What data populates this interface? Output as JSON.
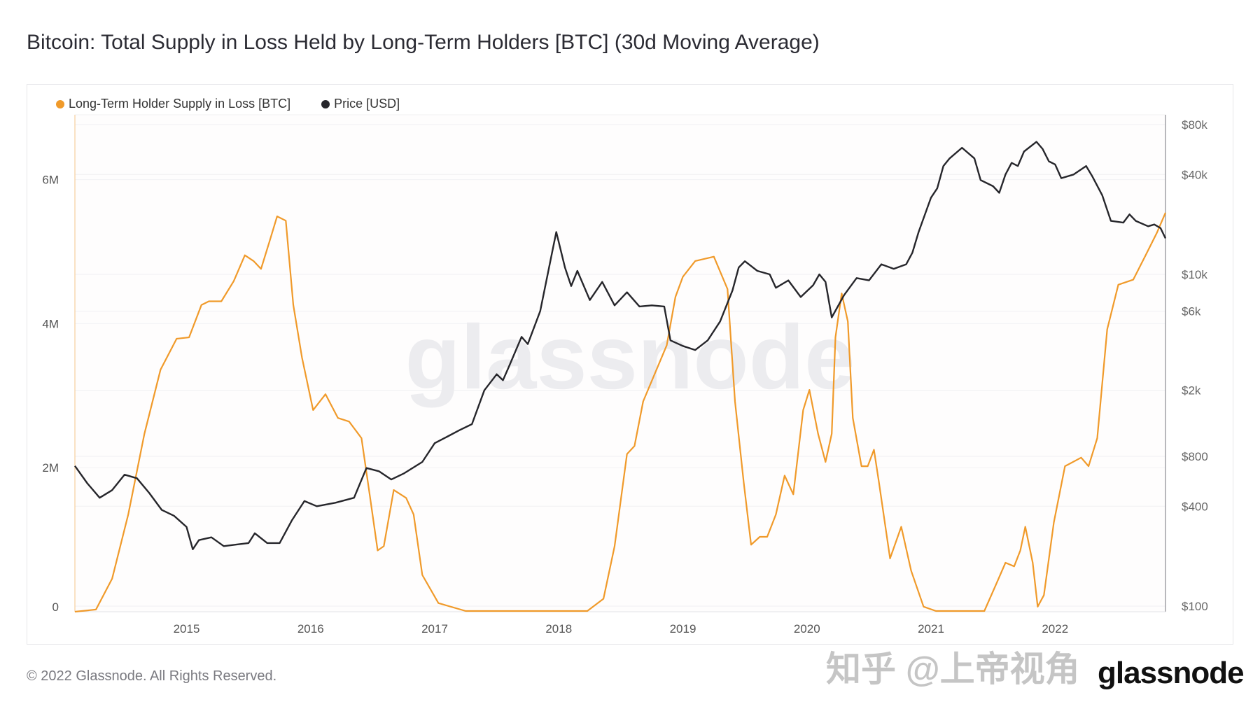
{
  "title": "Bitcoin: Total Supply in Loss Held by Long-Term Holders [BTC] (30d Moving Average)",
  "footer": "© 2022 Glassnode. All Rights Reserved.",
  "logo": "glassnode",
  "watermark": "glassnode",
  "overlay_watermark": "知乎 @上帝视角",
  "colors": {
    "supply": "#f09a2a",
    "price": "#26262b"
  },
  "chart_data": {
    "type": "line",
    "title": "Bitcoin: Total Supply in Loss Held by Long-Term Holders [BTC] (30d Moving Average)",
    "legend_position": "top-left",
    "grid": true,
    "x_range": [
      2014.1,
      2022.89
    ],
    "x_ticks": [
      "2015",
      "2016",
      "2017",
      "2018",
      "2019",
      "2020",
      "2021",
      "2022"
    ],
    "y_left": {
      "scale": "linear",
      "range": [
        0,
        6900000
      ],
      "ticks": [
        {
          "v": 0,
          "label": "0"
        },
        {
          "v": 2000000,
          "label": "2M"
        },
        {
          "v": 4000000,
          "label": "4M"
        },
        {
          "v": 6000000,
          "label": "6M"
        }
      ]
    },
    "y_right": {
      "scale": "log",
      "range": [
        100,
        80000
      ],
      "ticks": [
        {
          "v": 100,
          "label": "$100"
        },
        {
          "v": 400,
          "label": "$400"
        },
        {
          "v": 800,
          "label": "$800"
        },
        {
          "v": 2000,
          "label": "$2k"
        },
        {
          "v": 6000,
          "label": "$6k"
        },
        {
          "v": 10000,
          "label": "$10k"
        },
        {
          "v": 40000,
          "label": "$40k"
        },
        {
          "v": 80000,
          "label": "$80k"
        }
      ]
    },
    "series": [
      {
        "name": "Long-Term Holder Supply in Loss [BTC]",
        "axis": "left",
        "unit": "M BTC",
        "points": [
          [
            2014.1,
            0
          ],
          [
            2014.27,
            0.03
          ],
          [
            2014.4,
            0.46
          ],
          [
            2014.53,
            1.35
          ],
          [
            2014.66,
            2.47
          ],
          [
            2014.79,
            3.36
          ],
          [
            2014.92,
            3.79
          ],
          [
            2015.02,
            3.81
          ],
          [
            2015.12,
            4.26
          ],
          [
            2015.18,
            4.31
          ],
          [
            2015.28,
            4.31
          ],
          [
            2015.38,
            4.59
          ],
          [
            2015.47,
            4.95
          ],
          [
            2015.54,
            4.87
          ],
          [
            2015.6,
            4.76
          ],
          [
            2015.67,
            5.15
          ],
          [
            2015.73,
            5.49
          ],
          [
            2015.8,
            5.43
          ],
          [
            2015.86,
            4.26
          ],
          [
            2015.93,
            3.53
          ],
          [
            2016.02,
            2.8
          ],
          [
            2016.12,
            3.02
          ],
          [
            2016.22,
            2.69
          ],
          [
            2016.31,
            2.64
          ],
          [
            2016.41,
            2.41
          ],
          [
            2016.48,
            1.58
          ],
          [
            2016.54,
            0.85
          ],
          [
            2016.59,
            0.91
          ],
          [
            2016.67,
            1.69
          ],
          [
            2016.77,
            1.58
          ],
          [
            2016.83,
            1.35
          ],
          [
            2016.9,
            0.51
          ],
          [
            2017.03,
            0.12
          ],
          [
            2017.25,
            0.01
          ],
          [
            2018.23,
            0.01
          ],
          [
            2018.36,
            0.18
          ],
          [
            2018.45,
            0.91
          ],
          [
            2018.55,
            2.19
          ],
          [
            2018.61,
            2.3
          ],
          [
            2018.68,
            2.92
          ],
          [
            2018.87,
            3.7
          ],
          [
            2018.94,
            4.37
          ],
          [
            2019.0,
            4.65
          ],
          [
            2019.1,
            4.87
          ],
          [
            2019.25,
            4.93
          ],
          [
            2019.36,
            4.48
          ],
          [
            2019.42,
            2.92
          ],
          [
            2019.49,
            1.8
          ],
          [
            2019.55,
            0.93
          ],
          [
            2019.62,
            1.04
          ],
          [
            2019.68,
            1.04
          ],
          [
            2019.75,
            1.35
          ],
          [
            2019.82,
            1.89
          ],
          [
            2019.89,
            1.63
          ],
          [
            2019.97,
            2.8
          ],
          [
            2020.02,
            3.08
          ],
          [
            2020.09,
            2.47
          ],
          [
            2020.15,
            2.08
          ],
          [
            2020.2,
            2.47
          ],
          [
            2020.23,
            3.81
          ],
          [
            2020.28,
            4.42
          ],
          [
            2020.33,
            4.03
          ],
          [
            2020.37,
            2.69
          ],
          [
            2020.44,
            2.02
          ],
          [
            2020.49,
            2.02
          ],
          [
            2020.54,
            2.25
          ],
          [
            2020.58,
            1.8
          ],
          [
            2020.67,
            0.74
          ],
          [
            2020.76,
            1.18
          ],
          [
            2020.84,
            0.57
          ],
          [
            2020.94,
            0.07
          ],
          [
            2021.04,
            0.01
          ],
          [
            2021.43,
            0.01
          ],
          [
            2021.53,
            0.4
          ],
          [
            2021.6,
            0.68
          ],
          [
            2021.67,
            0.63
          ],
          [
            2021.72,
            0.85
          ],
          [
            2021.76,
            1.18
          ],
          [
            2021.82,
            0.68
          ],
          [
            2021.86,
            0.07
          ],
          [
            2021.91,
            0.23
          ],
          [
            2021.99,
            1.24
          ],
          [
            2022.08,
            2.02
          ],
          [
            2022.21,
            2.14
          ],
          [
            2022.27,
            2.02
          ],
          [
            2022.34,
            2.41
          ],
          [
            2022.42,
            3.92
          ],
          [
            2022.51,
            4.54
          ],
          [
            2022.63,
            4.61
          ],
          [
            2022.73,
            4.95
          ],
          [
            2022.82,
            5.26
          ],
          [
            2022.89,
            5.54
          ]
        ]
      },
      {
        "name": "Price [USD]",
        "axis": "right",
        "unit": "USD",
        "points": [
          [
            2014.1,
            700
          ],
          [
            2014.2,
            550
          ],
          [
            2014.3,
            450
          ],
          [
            2014.4,
            500
          ],
          [
            2014.5,
            620
          ],
          [
            2014.6,
            590
          ],
          [
            2014.7,
            480
          ],
          [
            2014.8,
            380
          ],
          [
            2014.9,
            350
          ],
          [
            2015.0,
            300
          ],
          [
            2015.05,
            220
          ],
          [
            2015.1,
            250
          ],
          [
            2015.2,
            260
          ],
          [
            2015.3,
            230
          ],
          [
            2015.4,
            235
          ],
          [
            2015.5,
            240
          ],
          [
            2015.55,
            275
          ],
          [
            2015.65,
            240
          ],
          [
            2015.75,
            240
          ],
          [
            2015.85,
            330
          ],
          [
            2015.95,
            430
          ],
          [
            2016.05,
            400
          ],
          [
            2016.2,
            420
          ],
          [
            2016.35,
            450
          ],
          [
            2016.45,
            680
          ],
          [
            2016.55,
            650
          ],
          [
            2016.65,
            580
          ],
          [
            2016.75,
            630
          ],
          [
            2016.9,
            740
          ],
          [
            2017.0,
            960
          ],
          [
            2017.1,
            1050
          ],
          [
            2017.2,
            1150
          ],
          [
            2017.3,
            1250
          ],
          [
            2017.4,
            2000
          ],
          [
            2017.5,
            2500
          ],
          [
            2017.55,
            2300
          ],
          [
            2017.6,
            2800
          ],
          [
            2017.7,
            4200
          ],
          [
            2017.75,
            3800
          ],
          [
            2017.85,
            6000
          ],
          [
            2017.95,
            14000
          ],
          [
            2017.98,
            18000
          ],
          [
            2018.05,
            11000
          ],
          [
            2018.1,
            8500
          ],
          [
            2018.15,
            10500
          ],
          [
            2018.25,
            7000
          ],
          [
            2018.35,
            9000
          ],
          [
            2018.45,
            6500
          ],
          [
            2018.55,
            7800
          ],
          [
            2018.65,
            6400
          ],
          [
            2018.75,
            6500
          ],
          [
            2018.85,
            6400
          ],
          [
            2018.9,
            4000
          ],
          [
            2019.0,
            3700
          ],
          [
            2019.1,
            3500
          ],
          [
            2019.2,
            4000
          ],
          [
            2019.3,
            5200
          ],
          [
            2019.4,
            8000
          ],
          [
            2019.45,
            11000
          ],
          [
            2019.5,
            12000
          ],
          [
            2019.6,
            10500
          ],
          [
            2019.7,
            10000
          ],
          [
            2019.75,
            8300
          ],
          [
            2019.85,
            9200
          ],
          [
            2019.95,
            7300
          ],
          [
            2020.05,
            8600
          ],
          [
            2020.1,
            10000
          ],
          [
            2020.15,
            9000
          ],
          [
            2020.2,
            5500
          ],
          [
            2020.3,
            7500
          ],
          [
            2020.4,
            9500
          ],
          [
            2020.5,
            9200
          ],
          [
            2020.6,
            11500
          ],
          [
            2020.7,
            10800
          ],
          [
            2020.8,
            11500
          ],
          [
            2020.85,
            13500
          ],
          [
            2020.9,
            18000
          ],
          [
            2021.0,
            29000
          ],
          [
            2021.05,
            33000
          ],
          [
            2021.1,
            45000
          ],
          [
            2021.15,
            50000
          ],
          [
            2021.25,
            58000
          ],
          [
            2021.35,
            50000
          ],
          [
            2021.4,
            37000
          ],
          [
            2021.5,
            34000
          ],
          [
            2021.55,
            31000
          ],
          [
            2021.6,
            40000
          ],
          [
            2021.65,
            47000
          ],
          [
            2021.7,
            45000
          ],
          [
            2021.75,
            55000
          ],
          [
            2021.85,
            63000
          ],
          [
            2021.9,
            57000
          ],
          [
            2021.95,
            48000
          ],
          [
            2022.0,
            46000
          ],
          [
            2022.05,
            38000
          ],
          [
            2022.15,
            40000
          ],
          [
            2022.25,
            45000
          ],
          [
            2022.3,
            39000
          ],
          [
            2022.38,
            30000
          ],
          [
            2022.45,
            21000
          ],
          [
            2022.55,
            20500
          ],
          [
            2022.6,
            23000
          ],
          [
            2022.65,
            21000
          ],
          [
            2022.75,
            19500
          ],
          [
            2022.8,
            20000
          ],
          [
            2022.85,
            19000
          ],
          [
            2022.89,
            16500
          ]
        ]
      }
    ]
  }
}
